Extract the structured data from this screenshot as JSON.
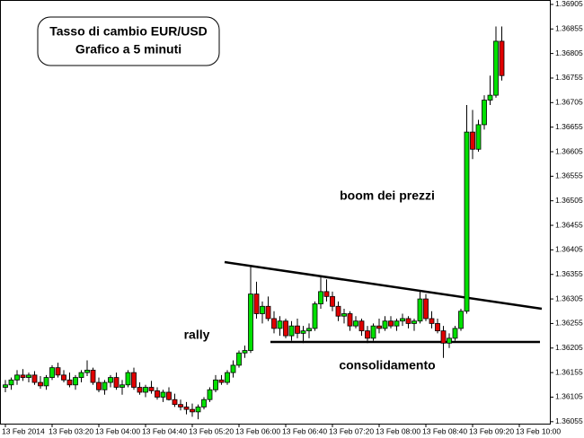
{
  "chart_data": {
    "type": "candlestick",
    "title": "Tasso di cambio EUR/USD",
    "subtitle": "Grafico a 5 minuti",
    "annotations": [
      "boom dei prezzi",
      "rally",
      "consolidamento"
    ],
    "categories": [
      "13 Feb 2014",
      null,
      null,
      null,
      null,
      null,
      null,
      null,
      "13 Feb 03:20",
      null,
      null,
      null,
      null,
      null,
      null,
      null,
      "13 Feb 04:00",
      null,
      null,
      null,
      null,
      null,
      null,
      null,
      "13 Feb 04:40",
      null,
      null,
      null,
      null,
      null,
      null,
      null,
      "13 Feb 05:20",
      null,
      null,
      null,
      null,
      null,
      null,
      null,
      "13 Feb 06:00",
      null,
      null,
      null,
      null,
      null,
      null,
      null,
      "13 Feb 06:40",
      null,
      null,
      null,
      null,
      null,
      null,
      null,
      "13 Feb 07:20",
      null,
      null,
      null,
      null,
      null,
      null,
      null,
      "13 Feb 08:00",
      null,
      null,
      null,
      null,
      null,
      null,
      null,
      "13 Feb 08:40",
      null,
      null,
      null,
      null,
      null,
      null,
      null,
      "13 Feb 09:20",
      null,
      null,
      null,
      null,
      null,
      null,
      null,
      "13 Feb 10:00"
    ],
    "open": [
      1.36125,
      1.3613,
      1.3614,
      1.3615,
      1.36145,
      1.3615,
      1.36135,
      1.36128,
      1.36145,
      1.36165,
      1.3615,
      1.3614,
      1.3613,
      1.36145,
      1.36155,
      1.3616,
      1.36135,
      1.3612,
      1.36135,
      1.36145,
      1.36125,
      1.3613,
      1.36155,
      1.36125,
      1.36115,
      1.36125,
      1.36118,
      1.36105,
      1.36115,
      1.361,
      1.3609,
      1.36085,
      1.3608,
      1.36075,
      1.36085,
      1.361,
      1.3612,
      1.3614,
      1.36135,
      1.36155,
      1.3617,
      1.36195,
      1.362,
      1.36315,
      1.36275,
      1.3629,
      1.36265,
      1.36245,
      1.3626,
      1.3623,
      1.3625,
      1.36235,
      1.3624,
      1.36245,
      1.36295,
      1.3632,
      1.3631,
      1.3629,
      1.3627,
      1.36275,
      1.3625,
      1.3626,
      1.3624,
      1.36225,
      1.3625,
      1.36245,
      1.3626,
      1.3625,
      1.3626,
      1.36265,
      1.36255,
      1.3626,
      1.36305,
      1.36265,
      1.36255,
      1.3624,
      1.36215,
      1.36225,
      1.36245,
      1.3628,
      1.36645,
      1.3661,
      1.3666,
      1.3671,
      1.3672,
      1.3683,
      null,
      null,
      null
    ],
    "high": [
      1.3614,
      1.36145,
      1.3616,
      1.36162,
      1.36155,
      1.36158,
      1.36148,
      1.3615,
      1.3617,
      1.36175,
      1.3616,
      1.36155,
      1.3615,
      1.3616,
      1.3618,
      1.36165,
      1.36145,
      1.3614,
      1.3615,
      1.36155,
      1.3614,
      1.3616,
      1.36165,
      1.36135,
      1.3613,
      1.36138,
      1.36125,
      1.3612,
      1.36125,
      1.36112,
      1.361,
      1.36095,
      1.36092,
      1.3609,
      1.36105,
      1.36125,
      1.3615,
      1.3615,
      1.3616,
      1.3618,
      1.362,
      1.3621,
      1.3637,
      1.3634,
      1.363,
      1.3631,
      1.3628,
      1.3627,
      1.36265,
      1.3626,
      1.36265,
      1.3625,
      1.36255,
      1.363,
      1.3635,
      1.36345,
      1.3632,
      1.363,
      1.36285,
      1.3628,
      1.3627,
      1.36265,
      1.3625,
      1.36255,
      1.36265,
      1.3627,
      1.3627,
      1.36265,
      1.36275,
      1.3627,
      1.36265,
      1.3632,
      1.36315,
      1.3628,
      1.36265,
      1.3625,
      1.36235,
      1.3625,
      1.36285,
      1.367,
      1.3669,
      1.3667,
      1.3672,
      1.3676,
      1.3686,
      1.3686,
      null,
      null,
      null
    ],
    "low": [
      1.36115,
      1.3612,
      1.3613,
      1.36138,
      1.36135,
      1.3613,
      1.36122,
      1.3612,
      1.3614,
      1.36145,
      1.36135,
      1.36125,
      1.3612,
      1.36135,
      1.36148,
      1.3613,
      1.36115,
      1.3611,
      1.36125,
      1.3612,
      1.3611,
      1.36125,
      1.3612,
      1.3611,
      1.36105,
      1.36112,
      1.361,
      1.36095,
      1.36098,
      1.36085,
      1.36078,
      1.3607,
      1.36065,
      1.3606,
      1.3608,
      1.36095,
      1.36115,
      1.3613,
      1.3613,
      1.36145,
      1.36165,
      1.36185,
      1.36195,
      1.36265,
      1.36255,
      1.3626,
      1.36235,
      1.3623,
      1.36225,
      1.3622,
      1.36225,
      1.36215,
      1.36225,
      1.3624,
      1.36285,
      1.363,
      1.3628,
      1.3626,
      1.36255,
      1.3624,
      1.36245,
      1.3623,
      1.36215,
      1.3622,
      1.36235,
      1.3624,
      1.36245,
      1.3624,
      1.3625,
      1.36245,
      1.3624,
      1.36255,
      1.3626,
      1.36245,
      1.36235,
      1.36185,
      1.36205,
      1.3622,
      1.3624,
      1.36275,
      1.3659,
      1.36605,
      1.3665,
      1.367,
      1.36715,
      1.3675,
      null,
      null,
      null
    ],
    "close": [
      1.3613,
      1.3614,
      1.3615,
      1.36145,
      1.3615,
      1.36135,
      1.36128,
      1.36145,
      1.36165,
      1.3615,
      1.3614,
      1.3613,
      1.36145,
      1.36155,
      1.3616,
      1.36135,
      1.3612,
      1.36135,
      1.36145,
      1.36125,
      1.3613,
      1.36155,
      1.36125,
      1.36115,
      1.36125,
      1.36118,
      1.36105,
      1.36115,
      1.361,
      1.3609,
      1.36085,
      1.3608,
      1.36075,
      1.36085,
      1.361,
      1.3612,
      1.3614,
      1.36135,
      1.36155,
      1.3617,
      1.36195,
      1.362,
      1.36315,
      1.36275,
      1.3629,
      1.36265,
      1.36245,
      1.3626,
      1.3623,
      1.3625,
      1.36235,
      1.3624,
      1.36245,
      1.36295,
      1.3632,
      1.3631,
      1.3629,
      1.3627,
      1.36275,
      1.3625,
      1.3626,
      1.3624,
      1.36225,
      1.3625,
      1.36245,
      1.3626,
      1.3625,
      1.3626,
      1.36265,
      1.36255,
      1.3626,
      1.36305,
      1.36265,
      1.36255,
      1.3624,
      1.36215,
      1.36225,
      1.36245,
      1.3628,
      1.36645,
      1.3661,
      1.3666,
      1.3671,
      1.3672,
      1.3683,
      1.3676,
      null,
      null,
      null
    ],
    "up_color": "#00e000",
    "down_color": "#e00000",
    "ylim": [
      1.36051,
      1.36914
    ],
    "yticks": [
      1.36905,
      1.36855,
      1.36805,
      1.36755,
      1.36705,
      1.36655,
      1.36605,
      1.36555,
      1.36505,
      1.36455,
      1.36405,
      1.36355,
      1.36305,
      1.36255,
      1.36205,
      1.36155,
      1.36105,
      1.36055
    ]
  }
}
